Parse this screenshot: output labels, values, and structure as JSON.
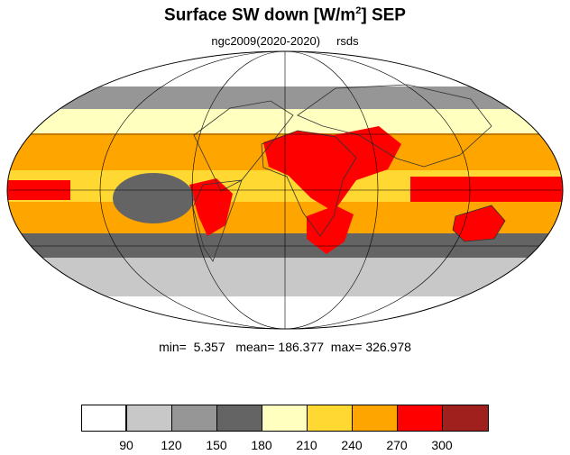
{
  "title": {
    "main": "Surface SW down [W/m",
    "superscript": "2",
    "suffix": "]  SEP"
  },
  "subtitle": {
    "left": "ngc2009(2020-2020)",
    "right": "rsds"
  },
  "stats": {
    "min_label": "min=",
    "min": "5.357",
    "mean_label": "mean=",
    "mean": "186.377",
    "max_label": "max=",
    "max": "326.978"
  },
  "colorbar": {
    "colors": [
      "#ffffff",
      "#c8c8c8",
      "#969696",
      "#646464",
      "#ffffc0",
      "#ffd832",
      "#ffa500",
      "#ff0000",
      "#a0201e"
    ],
    "levels": [
      "90",
      "120",
      "150",
      "180",
      "210",
      "240",
      "270",
      "300"
    ]
  },
  "map": {
    "projection": "Mollweide",
    "variable": "rsds",
    "zones": [
      {
        "band": "arctic",
        "level_index": 0
      },
      {
        "band": "north-subpolar",
        "level_index": 2
      },
      {
        "band": "north-midlatitude",
        "level_index": 4
      },
      {
        "band": "north-subtropics",
        "level_index": 6
      },
      {
        "band": "tropics",
        "level_index": 5
      },
      {
        "band": "south-subtropics",
        "level_index": 6
      },
      {
        "band": "south-midlatitude",
        "level_index": 3
      },
      {
        "band": "south-subpolar",
        "level_index": 1
      },
      {
        "band": "antarctic",
        "level_index": 0
      }
    ],
    "hotspots": [
      "sahara-arabia",
      "southern-africa",
      "australia",
      "andes",
      "maritime-continent"
    ]
  }
}
